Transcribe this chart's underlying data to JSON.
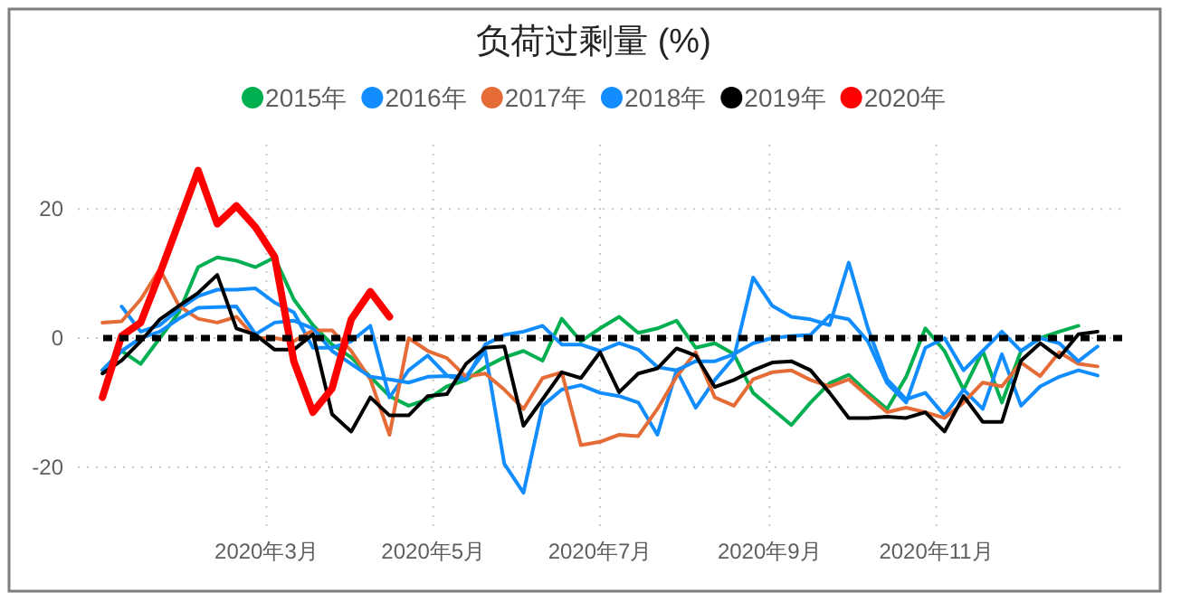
{
  "chart_data": {
    "type": "line",
    "title": "负荷过剩量 (%)",
    "legend": "top",
    "grid": true,
    "xlim": [
      "2019-12-23",
      "2021-01-08"
    ],
    "xticks": [
      {
        "value": "2020-03-01",
        "label": "2020年3月"
      },
      {
        "value": "2020-05-01",
        "label": "2020年5月"
      },
      {
        "value": "2020-07-01",
        "label": "2020年7月"
      },
      {
        "value": "2020-09-01",
        "label": "2020年9月"
      },
      {
        "value": "2020-11-01",
        "label": "2020年11月"
      }
    ],
    "ylim": [
      -30,
      30
    ],
    "yticks": [
      -20,
      0,
      20
    ],
    "ref_lines": [
      {
        "axis": "y",
        "value": 0,
        "color": "#000000",
        "line_style": "dotted"
      }
    ],
    "x": [
      "2020-01-01",
      "2020-01-08",
      "2020-01-15",
      "2020-01-22",
      "2020-01-29",
      "2020-02-05",
      "2020-02-12",
      "2020-02-19",
      "2020-02-26",
      "2020-03-04",
      "2020-03-11",
      "2020-03-18",
      "2020-03-25",
      "2020-04-01",
      "2020-04-08",
      "2020-04-15",
      "2020-04-22",
      "2020-04-29",
      "2020-05-06",
      "2020-05-13",
      "2020-05-20",
      "2020-05-27",
      "2020-06-03",
      "2020-06-10",
      "2020-06-17",
      "2020-06-24",
      "2020-07-01",
      "2020-07-08",
      "2020-07-15",
      "2020-07-22",
      "2020-07-29",
      "2020-08-05",
      "2020-08-12",
      "2020-08-19",
      "2020-08-26",
      "2020-09-02",
      "2020-09-09",
      "2020-09-16",
      "2020-09-23",
      "2020-09-30",
      "2020-10-07",
      "2020-10-14",
      "2020-10-21",
      "2020-10-28",
      "2020-11-04",
      "2020-11-11",
      "2020-11-18",
      "2020-11-25",
      "2020-12-02",
      "2020-12-09",
      "2020-12-16",
      "2020-12-23",
      "2020-12-30"
    ],
    "series": [
      {
        "name": "2015年",
        "color": "#00b050",
        "values": [
          -5,
          -2,
          -4,
          0,
          4,
          11,
          12.5,
          12,
          11,
          12.5,
          6,
          2,
          -1,
          -3,
          -6,
          -9,
          -10.5,
          -9.5,
          -7.5,
          -6.5,
          -4.5,
          -3,
          -2,
          -3.5,
          3,
          -0.5,
          1.5,
          3.3,
          0.8,
          1.5,
          2.7,
          -1.5,
          -0.8,
          -2.5,
          -8.5,
          -11,
          -13.5,
          -10,
          -7,
          -5.7,
          -8.5,
          -11,
          -6,
          1.5,
          -2,
          -8,
          -2,
          -10,
          -2,
          0,
          1,
          1.9,
          null
        ]
      },
      {
        "name": "2016年",
        "color": "#118dff",
        "values": [
          null,
          4.9,
          1,
          2,
          4.5,
          6.5,
          7.5,
          7.5,
          7.7,
          5.5,
          4,
          -1.5,
          -1.5,
          -0.5,
          1.9,
          -9.2,
          -5,
          -2.7,
          -5.8,
          -6,
          -2,
          -19.5,
          -24,
          -10.5,
          -8,
          -7.3,
          -8.5,
          -9,
          -10,
          -15,
          -5,
          -10.8,
          -6.5,
          -3,
          9.4,
          5,
          3.3,
          2.9,
          2,
          11.7,
          1.5,
          -6.4,
          -9.5,
          -8.5,
          -12,
          -8,
          -11,
          -2.5,
          -10.5,
          -7.5,
          -6,
          -5,
          -5.8
        ]
      },
      {
        "name": "2017年",
        "color": "#e66c37",
        "values": [
          2.4,
          2.6,
          6,
          10.7,
          5,
          3,
          2.4,
          3.3,
          0,
          0,
          -0.5,
          1.2,
          1.2,
          -2,
          -6.4,
          -15,
          0,
          -2,
          -3.1,
          -6,
          -5.5,
          -8,
          -11,
          -6.2,
          -5.3,
          -16.6,
          -16.1,
          -15,
          -15.2,
          -11,
          -6,
          -2.2,
          -9.2,
          -10.5,
          -6.4,
          -5.3,
          -5,
          -6.5,
          -7.5,
          -6.4,
          -9,
          -11.5,
          -10.8,
          -11.5,
          -12.4,
          -10,
          -6.9,
          -7.5,
          -3.8,
          -5.9,
          -2.2,
          -4,
          -4.4
        ]
      },
      {
        "name": "2018年",
        "color": "#118dff",
        "values": [
          -5,
          -2,
          0,
          1,
          3,
          4.7,
          4.8,
          4.9,
          0.6,
          2.4,
          2.7,
          1.5,
          -2,
          -4,
          -6,
          -6.4,
          -6.9,
          -6,
          -5.9,
          -6.5,
          -1,
          0.5,
          1,
          1.9,
          -1,
          -1,
          -2,
          -0.8,
          -1.8,
          -4.5,
          -5,
          -3.6,
          -3.6,
          -2.5,
          -0.8,
          0,
          0.3,
          0.5,
          3.5,
          2.9,
          -0.5,
          -7,
          -10,
          -1.5,
          0,
          -5,
          -2,
          1,
          -2,
          0,
          -0.8,
          -3.6,
          -1.3
        ]
      },
      {
        "name": "2019年",
        "color": "#000000",
        "values": [
          -5.5,
          -3.5,
          -0.5,
          2.9,
          5,
          7,
          9.8,
          1.5,
          0.5,
          -1.8,
          -1.8,
          0.6,
          -11.8,
          -14.5,
          -9.2,
          -12,
          -12,
          -9,
          -8.7,
          -4,
          -1.5,
          -1.3,
          -13.6,
          -9.5,
          -5.3,
          -6.2,
          -2.2,
          -8.4,
          -5.5,
          -4.7,
          -1.6,
          -2.7,
          -7.6,
          -6.5,
          -5,
          -3.8,
          -3.6,
          -5,
          -8.5,
          -12.4,
          -12.4,
          -12.2,
          -12.4,
          -11.5,
          -14.5,
          -9,
          -13,
          -13,
          -3.5,
          -0.8,
          -3,
          0.6,
          1
        ]
      },
      {
        "name": "2020年",
        "color": "#ff0000",
        "x": [
          "2020-01-01",
          "2020-01-08",
          "2020-01-15",
          "2020-01-22",
          "2020-01-29",
          "2020-02-05",
          "2020-02-12",
          "2020-02-19",
          "2020-02-26",
          "2020-03-04",
          "2020-03-11",
          "2020-03-18",
          "2020-03-25",
          "2020-04-01",
          "2020-04-08",
          "2020-04-15"
        ],
        "values": [
          -9.2,
          0.3,
          2.4,
          10,
          18,
          26,
          17.7,
          20.5,
          17.2,
          12.6,
          -3.6,
          -11.5,
          -7.8,
          2.9,
          7.2,
          3.3
        ]
      }
    ]
  }
}
